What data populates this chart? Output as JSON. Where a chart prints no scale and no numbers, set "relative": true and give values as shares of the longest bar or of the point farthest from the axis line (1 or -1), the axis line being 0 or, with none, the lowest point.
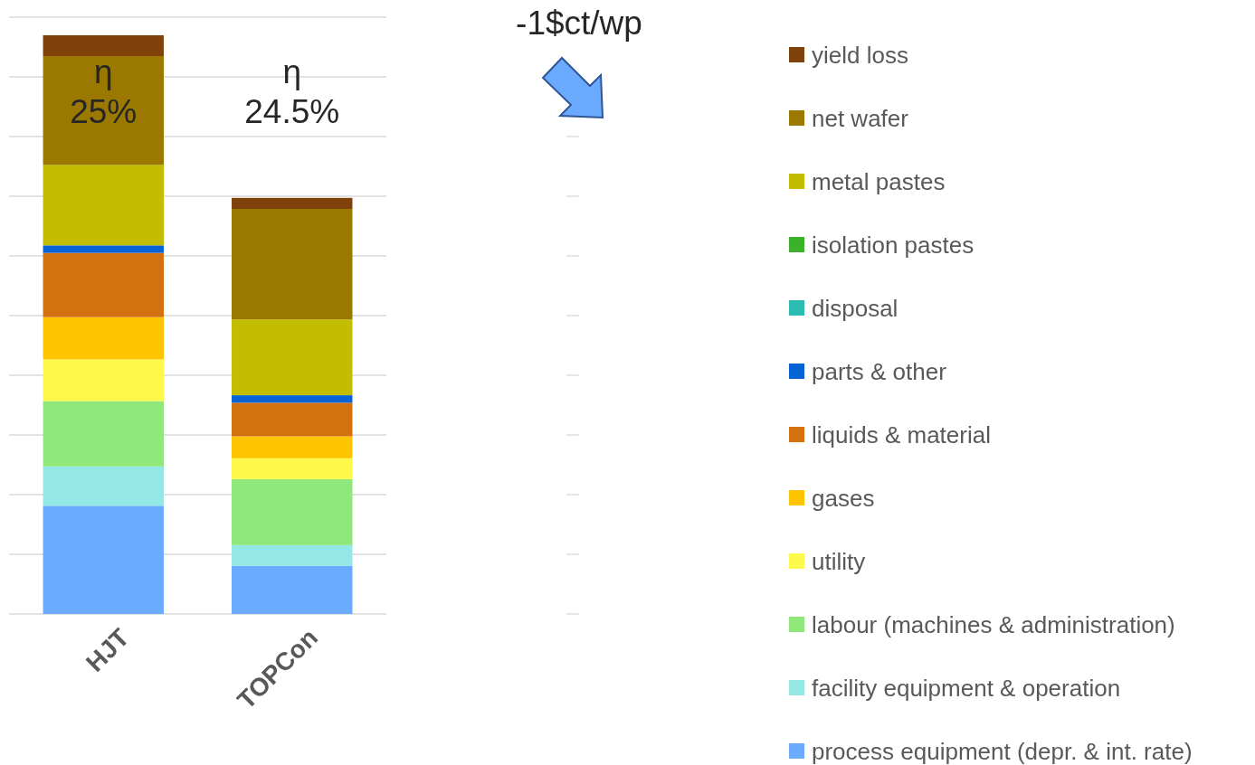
{
  "chart_data": {
    "type": "bar",
    "stacked": true,
    "relative": true,
    "grid": true,
    "legend": "right",
    "categories": [
      "HJT",
      "TOPCon"
    ],
    "series": [
      {
        "name": "process equipment (depr. & int. rate)",
        "color": "#6aabff",
        "values": [
          0.187,
          0.083
        ]
      },
      {
        "name": "facility equipment & operation",
        "color": "#93e8e6",
        "values": [
          0.068,
          0.036
        ]
      },
      {
        "name": "labour (machines & administration)",
        "color": "#90e87a",
        "values": [
          0.113,
          0.114
        ]
      },
      {
        "name": "utility",
        "color": "#fdf94a",
        "values": [
          0.072,
          0.036
        ]
      },
      {
        "name": "gases",
        "color": "#ffc400",
        "values": [
          0.073,
          0.038
        ]
      },
      {
        "name": "liquids & material",
        "color": "#d3700f",
        "values": [
          0.111,
          0.058
        ]
      },
      {
        "name": "parts & other",
        "color": "#0563d6",
        "values": [
          0.013,
          0.013
        ]
      },
      {
        "name": "disposal",
        "color": "#2bbbb0",
        "values": [
          0,
          0
        ]
      },
      {
        "name": "isolation pastes",
        "color": "#3cb22c",
        "values": [
          0,
          0
        ]
      },
      {
        "name": "metal pastes",
        "color": "#c2bd00",
        "values": [
          0.139,
          0.131
        ]
      },
      {
        "name": "net wafer",
        "color": "#9b7800",
        "values": [
          0.188,
          0.191
        ]
      },
      {
        "name": "yield loss",
        "color": "#7f420a",
        "values": [
          0.036,
          0.019
        ]
      }
    ],
    "annotations": [
      "η\n25%",
      "η\n24.5%",
      "-1$ct/wp"
    ]
  }
}
